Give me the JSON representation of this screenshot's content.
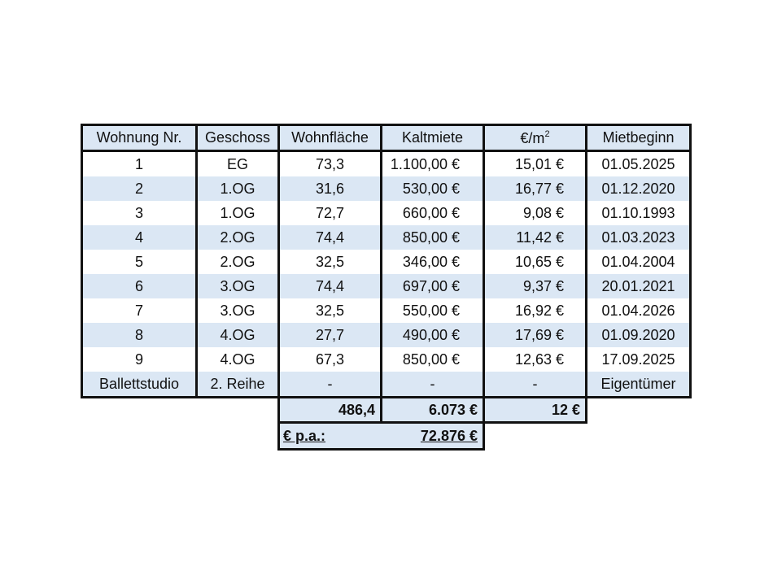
{
  "header": {
    "wohnung": "Wohnung Nr.",
    "geschoss": "Geschoss",
    "wohnflaeche": "Wohnfläche",
    "kaltmiete": "Kaltmiete",
    "preis_base": "€/m",
    "preis_sup": "2",
    "mietbeginn": "Mietbeginn"
  },
  "rows": [
    {
      "nr": "1",
      "geschoss": "EG",
      "flaeche": "73,3",
      "miete": "1.100,00 €",
      "qm": "15,01 €",
      "beginn": "01.05.2025"
    },
    {
      "nr": "2",
      "geschoss": "1.OG",
      "flaeche": "31,6",
      "miete": "530,00 €",
      "qm": "16,77 €",
      "beginn": "01.12.2020"
    },
    {
      "nr": "3",
      "geschoss": "1.OG",
      "flaeche": "72,7",
      "miete": "660,00 €",
      "qm": "9,08 €",
      "beginn": "01.10.1993"
    },
    {
      "nr": "4",
      "geschoss": "2.OG",
      "flaeche": "74,4",
      "miete": "850,00 €",
      "qm": "11,42 €",
      "beginn": "01.03.2023"
    },
    {
      "nr": "5",
      "geschoss": "2.OG",
      "flaeche": "32,5",
      "miete": "346,00 €",
      "qm": "10,65 €",
      "beginn": "01.04.2004"
    },
    {
      "nr": "6",
      "geschoss": "3.OG",
      "flaeche": "74,4",
      "miete": "697,00 €",
      "qm": "9,37 €",
      "beginn": "20.01.2021"
    },
    {
      "nr": "7",
      "geschoss": "3.OG",
      "flaeche": "32,5",
      "miete": "550,00 €",
      "qm": "16,92 €",
      "beginn": "01.04.2026"
    },
    {
      "nr": "8",
      "geschoss": "4.OG",
      "flaeche": "27,7",
      "miete": "490,00 €",
      "qm": "17,69 €",
      "beginn": "01.09.2020"
    },
    {
      "nr": "9",
      "geschoss": "4.OG",
      "flaeche": "67,3",
      "miete": "850,00 €",
      "qm": "12,63 €",
      "beginn": "17.09.2025"
    },
    {
      "nr": "Ballettstudio",
      "geschoss": "2. Reihe",
      "flaeche": "-",
      "miete": "-",
      "qm": "-",
      "beginn": "Eigentümer"
    }
  ],
  "totals": {
    "flaeche": "486,4",
    "miete": "6.073 €",
    "qm": "12 €"
  },
  "annual": {
    "label": "€ p.a.:",
    "value": "72.876 €"
  }
}
